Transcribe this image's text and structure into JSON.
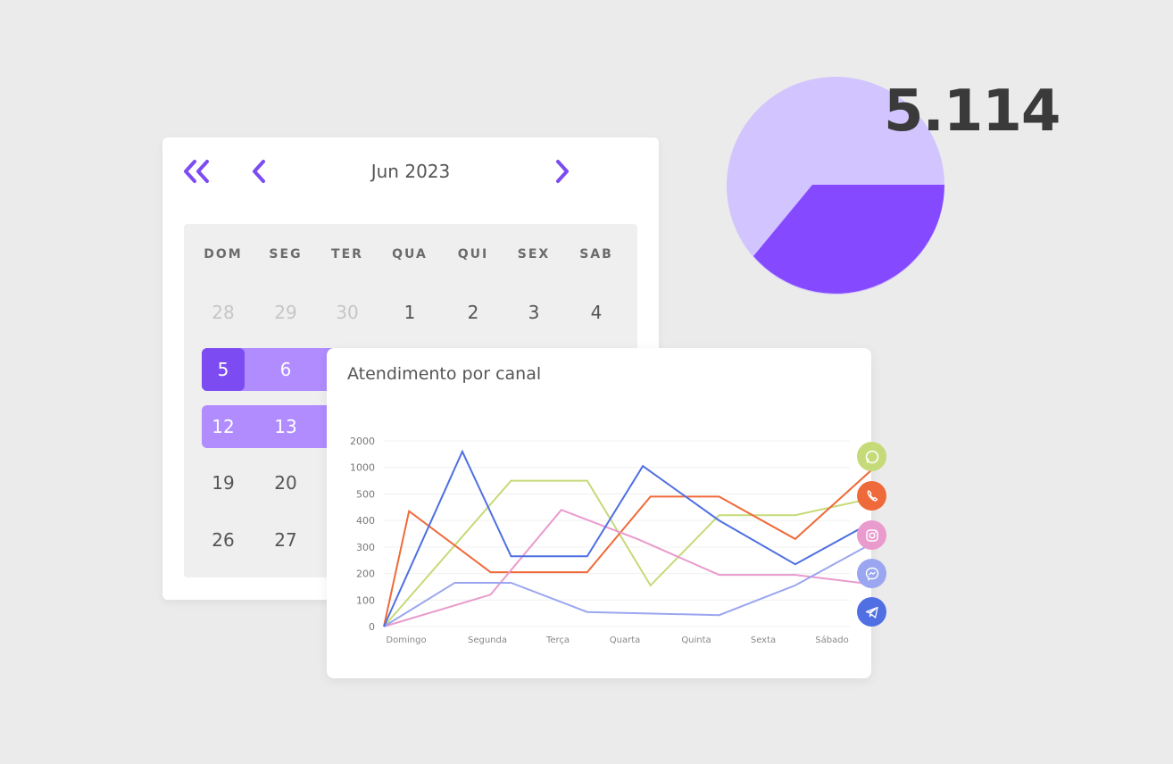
{
  "calendar": {
    "title": "Jun 2023",
    "weekdays": [
      "DOM",
      "SEG",
      "TER",
      "QUA",
      "QUI",
      "SEX",
      "SAB"
    ],
    "rows": [
      [
        {
          "d": "28",
          "muted": true
        },
        {
          "d": "29",
          "muted": true
        },
        {
          "d": "30",
          "muted": true
        },
        {
          "d": "1"
        },
        {
          "d": "2"
        },
        {
          "d": "3"
        },
        {
          "d": "4"
        }
      ],
      [
        {
          "d": "5",
          "start": true
        },
        {
          "d": "6",
          "sel": true
        }
      ],
      [
        {
          "d": "12",
          "sel": true
        },
        {
          "d": "13",
          "sel": true
        }
      ],
      [
        {
          "d": "19"
        },
        {
          "d": "20"
        }
      ],
      [
        {
          "d": "26"
        },
        {
          "d": "27"
        }
      ]
    ],
    "accent": "#7c4cf2",
    "range_color": "#b08cff"
  },
  "pie": {
    "value_label": "5.114",
    "slices": [
      {
        "name": "light",
        "fraction": 0.66,
        "color": "#d2c4ff"
      },
      {
        "name": "dark",
        "fraction": 0.34,
        "color": "#8549ff"
      }
    ]
  },
  "chart_data": {
    "type": "line",
    "title": "Atendimento por canal",
    "categories": [
      "Domingo",
      "Segunda",
      "Terça",
      "Quarta",
      "Quinta",
      "Sexta",
      "Sábado"
    ],
    "y_ticks": [
      "2000",
      "1000",
      "500",
      "400",
      "300",
      "200",
      "100",
      "0"
    ],
    "series": [
      {
        "channel": "whatsapp",
        "color": "#c5da78",
        "points": [
          [
            0,
            0
          ],
          [
            1.67,
            5.5
          ],
          [
            2.67,
            5.5
          ],
          [
            3.5,
            1.55
          ],
          [
            4.4,
            4.2
          ],
          [
            5.4,
            4.2
          ],
          [
            6.67,
            5.0
          ]
        ]
      },
      {
        "channel": "phone",
        "color": "#ef6a3a",
        "points": [
          [
            0,
            0
          ],
          [
            0.33,
            4.35
          ],
          [
            1.4,
            2.05
          ],
          [
            2.67,
            2.05
          ],
          [
            3.5,
            4.9
          ],
          [
            4.4,
            4.9
          ],
          [
            5.4,
            3.3
          ],
          [
            6.67,
            6.6
          ]
        ]
      },
      {
        "channel": "instagram",
        "color": "#e99bcd",
        "points": [
          [
            0,
            0
          ],
          [
            1.4,
            1.2
          ],
          [
            2.33,
            4.4
          ],
          [
            3.33,
            3.3
          ],
          [
            4.4,
            1.95
          ],
          [
            5.4,
            1.95
          ],
          [
            6.67,
            1.5
          ]
        ]
      },
      {
        "channel": "messenger",
        "color": "#9aa6f0",
        "points": [
          [
            0,
            0
          ],
          [
            0.93,
            1.65
          ],
          [
            1.67,
            1.65
          ],
          [
            2.67,
            0.55
          ],
          [
            4.4,
            0.43
          ],
          [
            5.4,
            1.55
          ],
          [
            6.67,
            3.55
          ]
        ]
      },
      {
        "channel": "telegram",
        "color": "#4f6fe2",
        "points": [
          [
            0,
            0
          ],
          [
            1.03,
            6.6
          ],
          [
            1.67,
            2.65
          ],
          [
            2.67,
            2.65
          ],
          [
            3.4,
            6.05
          ],
          [
            4.4,
            4.0
          ],
          [
            5.4,
            2.35
          ],
          [
            6.67,
            4.35
          ]
        ]
      }
    ]
  },
  "channels": [
    {
      "name": "whatsapp",
      "color": "#c5da78"
    },
    {
      "name": "phone",
      "color": "#ef6a3a"
    },
    {
      "name": "instagram",
      "color": "#e99bcd"
    },
    {
      "name": "messenger",
      "color": "#9aa6f0"
    },
    {
      "name": "telegram",
      "color": "#4f6fe2"
    }
  ]
}
